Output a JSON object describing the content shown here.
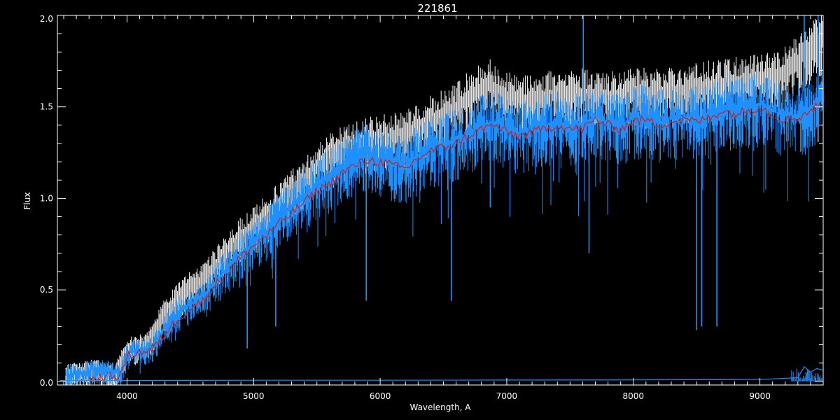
{
  "chart_data": {
    "type": "line",
    "title": "221861",
    "xlabel": "Wavelength, A",
    "ylabel": "Flux",
    "xlim": [
      3450,
      9500
    ],
    "ylim": [
      -0.02,
      2.0
    ],
    "xticks": [
      {
        "value": 4000,
        "label": "4000"
      },
      {
        "value": 5000,
        "label": "5000"
      },
      {
        "value": 6000,
        "label": "6000"
      },
      {
        "value": 7000,
        "label": "7000"
      },
      {
        "value": 8000,
        "label": "8000"
      },
      {
        "value": 9000,
        "label": "9000"
      }
    ],
    "yticks": [
      {
        "value": 0.0,
        "label": "0.0"
      },
      {
        "value": 0.5,
        "label": "0.5"
      },
      {
        "value": 1.0,
        "label": "1.0"
      },
      {
        "value": 1.5,
        "label": "1.5"
      },
      {
        "value": 2.0,
        "label": "2.0"
      }
    ],
    "grid": false,
    "colors": {
      "background": "#000000",
      "axes": "#ffffff",
      "spectrum_white": "#ffffff",
      "spectrum_blue": "#1e90ff",
      "model_red": "#cc2222"
    },
    "series": [
      {
        "style": "white-upper-envelope",
        "color": "#ffffff",
        "x": [
          3470,
          3600,
          3750,
          3900,
          4000,
          4150,
          4300,
          4450,
          4600,
          4750,
          4900,
          5050,
          5200,
          5350,
          5500,
          5650,
          5800,
          5950,
          6100,
          6250,
          6400,
          6550,
          6700,
          6850,
          7000,
          7200,
          7400,
          7600,
          7800,
          8000,
          8200,
          8400,
          8600,
          8800,
          9000,
          9200,
          9400,
          9500
        ],
        "y": [
          0.05,
          0.07,
          0.09,
          0.05,
          0.2,
          0.22,
          0.4,
          0.52,
          0.58,
          0.7,
          0.82,
          0.9,
          1.0,
          1.1,
          1.2,
          1.28,
          1.32,
          1.34,
          1.36,
          1.4,
          1.45,
          1.5,
          1.58,
          1.66,
          1.58,
          1.56,
          1.6,
          1.6,
          1.58,
          1.6,
          1.6,
          1.62,
          1.64,
          1.66,
          1.68,
          1.72,
          1.85,
          1.9
        ]
      },
      {
        "style": "blue-observed",
        "color": "#1e90ff",
        "x": [
          3470,
          3550,
          3650,
          3750,
          3850,
          3950,
          4000,
          4100,
          4200,
          4300,
          4400,
          4500,
          4600,
          4700,
          4800,
          4900,
          5000,
          5100,
          5200,
          5300,
          5400,
          5500,
          5600,
          5700,
          5800,
          5900,
          6000,
          6100,
          6200,
          6300,
          6400,
          6500,
          6600,
          6700,
          6800,
          6900,
          7000,
          7100,
          7200,
          7300,
          7400,
          7500,
          7600,
          7700,
          7800,
          7900,
          8000,
          8100,
          8200,
          8300,
          8400,
          8500,
          8600,
          8700,
          8800,
          8900,
          9000,
          9100,
          9200,
          9300,
          9400,
          9500
        ],
        "y": [
          0.03,
          0.04,
          0.05,
          0.07,
          0.06,
          0.04,
          0.15,
          0.17,
          0.18,
          0.3,
          0.38,
          0.42,
          0.46,
          0.55,
          0.62,
          0.7,
          0.76,
          0.82,
          0.9,
          0.96,
          1.02,
          1.08,
          1.12,
          1.18,
          1.22,
          1.25,
          1.22,
          1.2,
          1.18,
          1.24,
          1.28,
          1.3,
          1.32,
          1.36,
          1.4,
          1.42,
          1.38,
          1.36,
          1.38,
          1.4,
          1.42,
          1.4,
          1.4,
          1.45,
          1.42,
          1.4,
          1.44,
          1.45,
          1.42,
          1.44,
          1.45,
          1.44,
          1.46,
          1.5,
          1.48,
          1.5,
          1.52,
          1.48,
          1.45,
          1.46,
          1.5,
          1.55
        ]
      },
      {
        "style": "red-model",
        "color": "#cc2222",
        "x": [
          3700,
          3800,
          3900,
          3950,
          4000,
          4100,
          4200,
          4300,
          4400,
          4500,
          4600,
          4700,
          4800,
          4900,
          5000,
          5100,
          5200,
          5300,
          5400,
          5500,
          5600,
          5700,
          5800,
          5900,
          6000,
          6100,
          6200,
          6300,
          6400,
          6500,
          6600,
          6700,
          6800,
          6900,
          7000,
          7100,
          7200,
          7300,
          7400,
          7500,
          7600,
          7700,
          7800,
          7900,
          8000,
          8100,
          8200,
          8300,
          8400,
          8500,
          8600,
          8700,
          8800,
          8900,
          9000,
          9100,
          9200,
          9300,
          9400,
          9500
        ],
        "y": [
          0.01,
          0.02,
          0.03,
          0.03,
          0.14,
          0.16,
          0.17,
          0.26,
          0.34,
          0.4,
          0.44,
          0.53,
          0.6,
          0.68,
          0.74,
          0.8,
          0.86,
          0.92,
          0.98,
          1.04,
          1.08,
          1.14,
          1.18,
          1.21,
          1.2,
          1.18,
          1.16,
          1.22,
          1.26,
          1.28,
          1.3,
          1.34,
          1.38,
          1.4,
          1.36,
          1.34,
          1.36,
          1.38,
          1.4,
          1.38,
          1.38,
          1.43,
          1.4,
          1.38,
          1.42,
          1.43,
          1.4,
          1.42,
          1.43,
          1.42,
          1.44,
          1.48,
          1.46,
          1.48,
          1.5,
          1.46,
          1.43,
          1.44,
          1.48,
          1.53
        ]
      },
      {
        "style": "blue-error",
        "color": "#1e90ff",
        "x": [
          3470,
          4000,
          5000,
          6000,
          7000,
          8000,
          9000,
          9300,
          9350,
          9400,
          9450,
          9500
        ],
        "y": [
          0.005,
          0.005,
          0.006,
          0.006,
          0.007,
          0.008,
          0.01,
          0.02,
          0.08,
          0.05,
          0.07,
          0.06
        ]
      }
    ],
    "absorption_lines": [
      {
        "x": 4950,
        "y": 0.18
      },
      {
        "x": 5175,
        "y": 0.3
      },
      {
        "x": 5890,
        "y": 0.44
      },
      {
        "x": 6563,
        "y": 0.44
      },
      {
        "x": 6870,
        "y": 0.95
      },
      {
        "x": 7650,
        "y": 0.7
      },
      {
        "x": 8500,
        "y": 0.28
      },
      {
        "x": 8540,
        "y": 0.3
      },
      {
        "x": 8660,
        "y": 0.3
      }
    ],
    "emission_lines": [
      {
        "x": 7605,
        "y": 2.0
      },
      {
        "x": 9350,
        "y": 2.0
      },
      {
        "x": 9460,
        "y": 2.0
      }
    ]
  }
}
